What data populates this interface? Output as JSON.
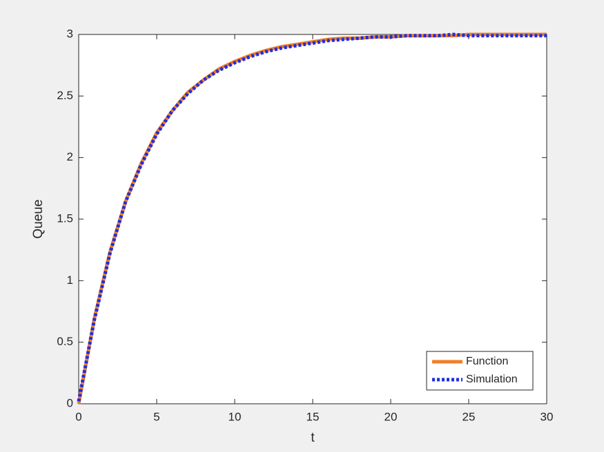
{
  "chart_data": {
    "type": "line",
    "x": [
      0,
      1,
      2,
      3,
      4,
      5,
      6,
      7,
      8,
      9,
      10,
      11,
      12,
      13,
      14,
      15,
      16,
      17,
      18,
      19,
      20,
      21,
      22,
      23,
      24,
      25,
      26,
      27,
      28,
      29,
      30
    ],
    "series": [
      {
        "name": "Function",
        "color": "#f07f27",
        "style": "solid",
        "values": [
          0,
          0.69,
          1.23,
          1.64,
          1.95,
          2.2,
          2.38,
          2.53,
          2.63,
          2.72,
          2.78,
          2.83,
          2.87,
          2.9,
          2.92,
          2.94,
          2.96,
          2.97,
          2.97,
          2.98,
          2.98,
          2.99,
          2.99,
          2.99,
          2.99,
          3,
          3,
          3,
          3,
          3,
          3
        ]
      },
      {
        "name": "Simulation",
        "color": "#1f2ee0",
        "style": "dotted",
        "values": [
          0.02,
          0.68,
          1.22,
          1.64,
          1.94,
          2.19,
          2.38,
          2.52,
          2.63,
          2.71,
          2.77,
          2.82,
          2.86,
          2.89,
          2.91,
          2.93,
          2.95,
          2.96,
          2.97,
          2.98,
          2.98,
          2.99,
          2.99,
          2.99,
          3,
          2.99,
          2.99,
          2.99,
          2.99,
          2.99,
          2.99
        ]
      }
    ],
    "xlabel": "t",
    "ylabel": "Queue",
    "xlim": [
      0,
      30
    ],
    "xticks": [
      0,
      5,
      10,
      15,
      20,
      25,
      30
    ],
    "ylim": [
      0,
      3
    ],
    "yticks": [
      0,
      0.5,
      1,
      1.5,
      2,
      2.5,
      3
    ],
    "legend": "lower right"
  }
}
